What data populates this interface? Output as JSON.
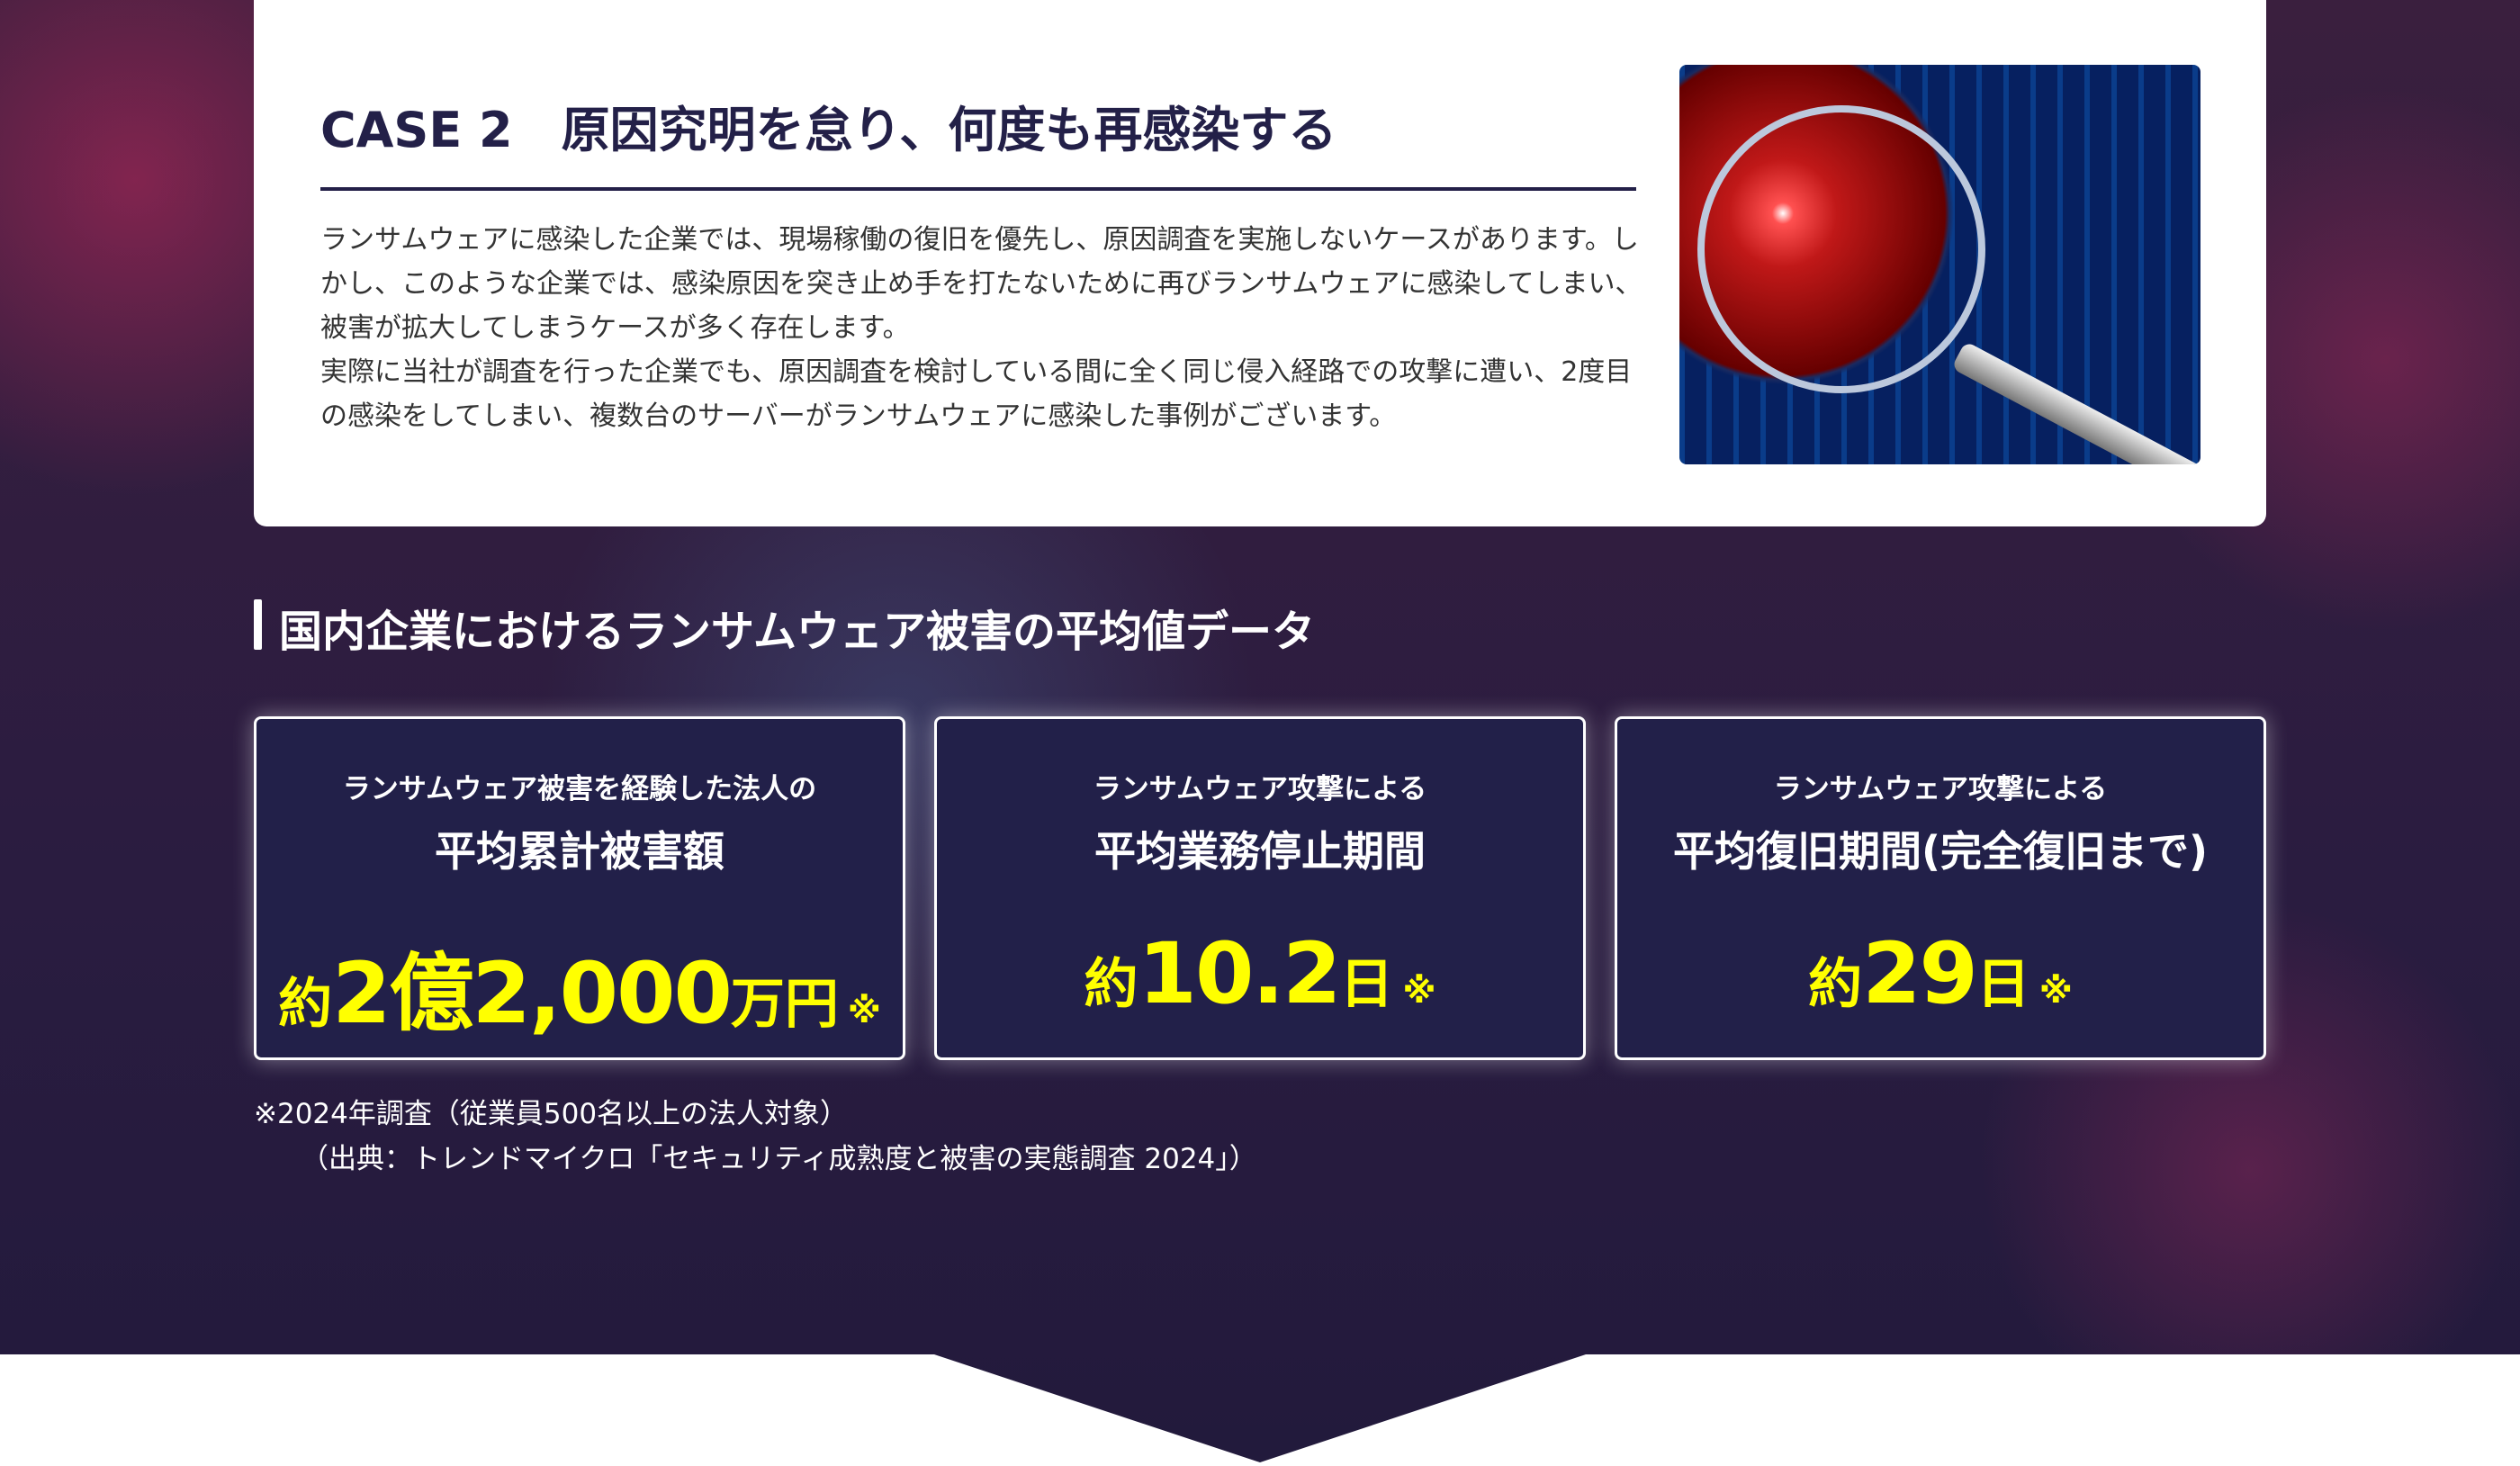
{
  "case": {
    "title": "CASE 2　原因究明を怠り、何度も再感染する",
    "body": [
      "ランサムウェアに感染した企業では、現場稼働の復旧を優先し、原因調査を実施しないケースがあります。しかし、このような企業では、感染原因を突き止め手を打たないために再びランサムウェアに感染してしまい、被害が拡大してしまうケースが多く存在します。",
      "実際に当社が調査を行った企業でも、原因調査を検討している間に全く同じ侵入経路での攻撃に遭い、2度目の感染をしてしまい、複数台のサーバーがランサムウェアに感染した事例がございます。"
    ],
    "image": "magnifying-glass-circuit-board"
  },
  "section_title": "国内企業におけるランサムウェア被害の平均値データ",
  "stats": [
    {
      "small": "ランサムウェア被害を経験した法人の",
      "large": "平均累計被害額",
      "prefix": "約",
      "value": "2億2,000",
      "unit": "万円",
      "mark": "※"
    },
    {
      "small": "ランサムウェア攻撃による",
      "large": "平均業務停止期間",
      "prefix": "約",
      "value": "10.2",
      "unit": "日",
      "mark": "※"
    },
    {
      "small": "ランサムウェア攻撃による",
      "large": "平均復旧期間(完全復旧まで)",
      "prefix": "約",
      "value": "29",
      "unit": "日",
      "mark": "※"
    }
  ],
  "note": {
    "line1": "※2024年調査（従業員500名以上の法人対象）",
    "line2": "（出典：トレンドマイクロ「セキュリティ成熟度と被害の実態調査 2024」）"
  },
  "colors": {
    "navy": "#232048",
    "highlight": "#ffff00"
  }
}
